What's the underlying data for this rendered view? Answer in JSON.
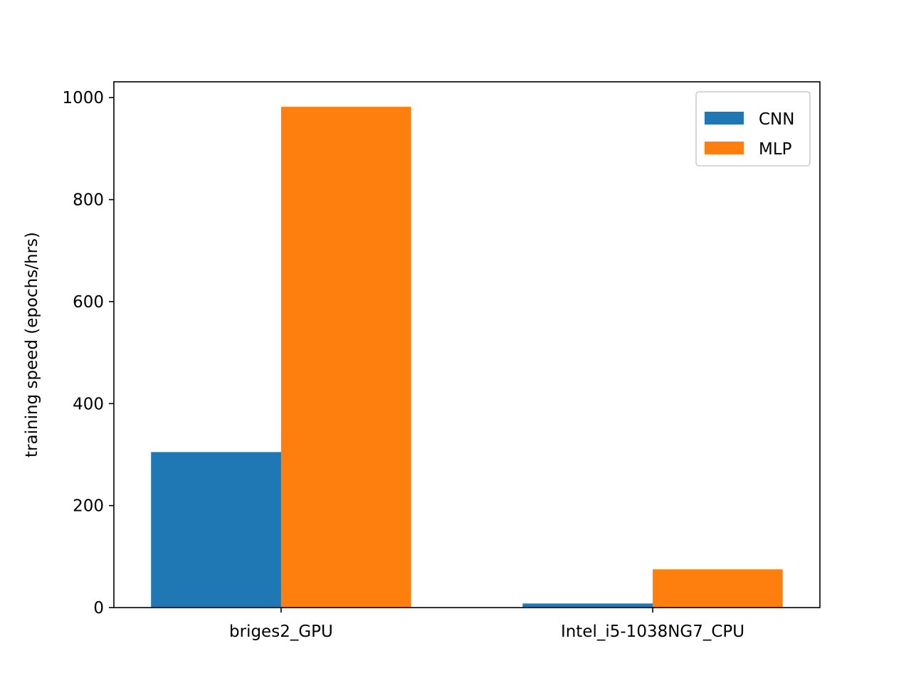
{
  "chart_data": {
    "type": "bar",
    "title": "",
    "xlabel": "",
    "ylabel": "training speed (epochs/hrs)",
    "categories": [
      "briges2_GPU",
      "Intel_i5-1038NG7_CPU"
    ],
    "series": [
      {
        "name": "CNN",
        "values": [
          305,
          8
        ],
        "color": "#1f77b4"
      },
      {
        "name": "MLP",
        "values": [
          982,
          75
        ],
        "color": "#ff7f0e"
      }
    ],
    "ylim": [
      0,
      1031
    ],
    "yticks": [
      0,
      200,
      400,
      600,
      800,
      1000
    ],
    "grid": false,
    "legend": "top-right"
  }
}
